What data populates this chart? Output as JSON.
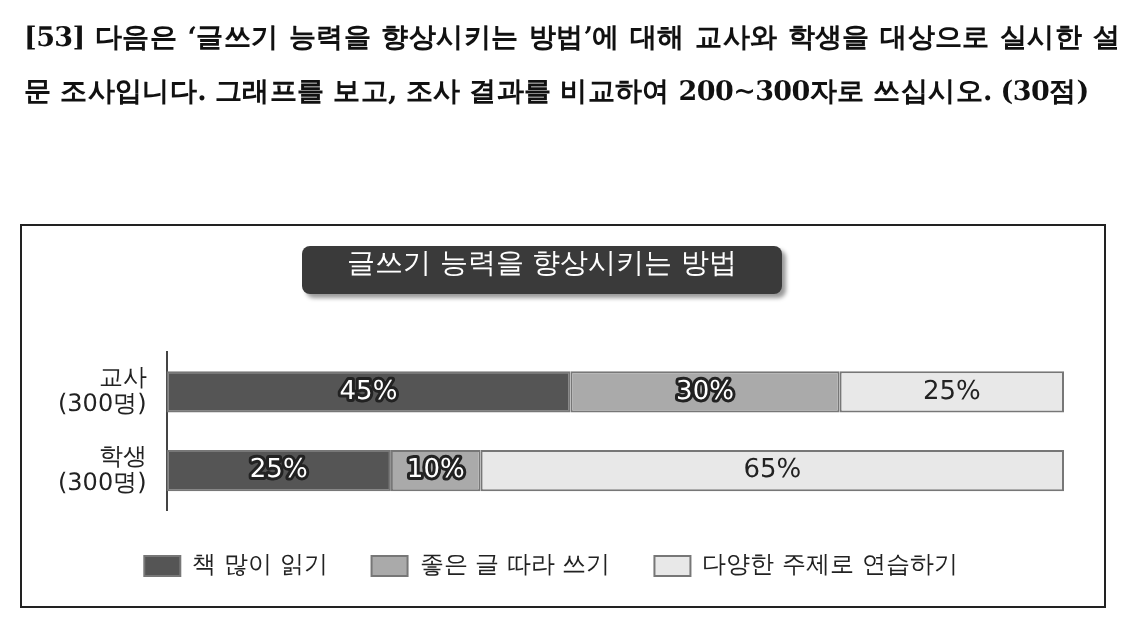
{
  "chart_data": {
    "type": "bar",
    "orientation": "horizontal",
    "stacked": true,
    "title": "[53] 다음은 ‘글쓰기 능력을 향상시키는 방법’에 대해 교사와 학생을 대상으로 실시한 설문 조사입니다. 그래프를 보고, 조사 결과를 비교하여 200∼300자로 쓰십시오. (30점)",
    "subtitle": "글쓰기 능력을 향상시키는 방법",
    "categories": [
      "교사 (300명)",
      "학생 (300명)"
    ],
    "series": [
      {
        "name": "책 많이 읽기",
        "color": "#555555",
        "values": [
          45,
          25
        ],
        "value_labels": [
          "45%",
          "25%"
        ]
      },
      {
        "name": "좋은 글 따라 쓰기",
        "color": "#aaaaaa",
        "values": [
          30,
          10
        ],
        "value_labels": [
          "30%",
          "10%"
        ]
      },
      {
        "name": "다양한 주제로 연습하기",
        "color": "#e8e8e8",
        "values": [
          25,
          65
        ],
        "value_labels": [
          "25%",
          "65%"
        ]
      }
    ],
    "legend": "bottom",
    "grid": false,
    "tick_labels": "y"
  }
}
